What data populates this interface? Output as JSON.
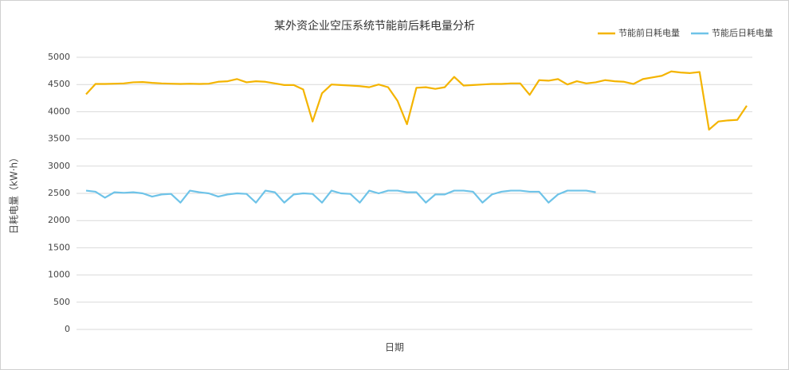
{
  "chart_data": {
    "type": "line",
    "title": "某外资企业空压系统节能前后耗电量分析",
    "x_label": "日期",
    "y_label": "日耗电量（kW·h）",
    "categories": [
      null,
      null,
      null,
      null,
      null,
      null,
      null,
      null,
      null,
      null,
      null,
      null,
      null,
      null,
      null,
      null,
      null,
      null,
      null,
      null,
      null,
      null,
      null,
      null,
      null,
      null,
      null,
      null,
      null,
      null,
      null,
      null,
      null,
      null,
      null,
      null,
      null,
      null,
      null,
      null,
      null,
      null,
      null,
      null,
      null,
      null,
      null,
      null,
      null,
      null,
      null,
      null,
      null,
      null,
      null,
      null,
      null,
      null,
      null,
      null,
      null,
      null,
      null,
      null,
      null,
      null,
      null,
      null,
      null,
      null,
      null
    ],
    "series": [
      {
        "name": "节能前日耗电量",
        "color": "#f4b400",
        "values": [
          4320,
          4510,
          4510,
          4515,
          4520,
          4540,
          4545,
          4530,
          4520,
          4515,
          4510,
          4515,
          4510,
          4515,
          4550,
          4560,
          4600,
          4540,
          4560,
          4550,
          4520,
          4490,
          4490,
          4410,
          3820,
          4340,
          4500,
          4490,
          4480,
          4470,
          4450,
          4500,
          4450,
          4200,
          3770,
          4440,
          4450,
          4420,
          4450,
          4640,
          4480,
          4490,
          4500,
          4510,
          4510,
          4520,
          4520,
          4310,
          4580,
          4570,
          4600,
          4500,
          4560,
          4520,
          4540,
          4580,
          4560,
          4550,
          4510,
          4600,
          4630,
          4660,
          4740,
          4720,
          4710,
          4730,
          3670,
          3820,
          3840,
          3850,
          4110
        ]
      },
      {
        "name": "节能后日耗电量",
        "color": "#6ec3e8",
        "values": [
          2550,
          2530,
          2420,
          2520,
          2510,
          2520,
          2500,
          2440,
          2480,
          2490,
          2330,
          2550,
          2520,
          2500,
          2440,
          2480,
          2500,
          2490,
          2330,
          2550,
          2520,
          2330,
          2480,
          2500,
          2490,
          2330,
          2550,
          2500,
          2490,
          2330,
          2550,
          2500,
          2550,
          2550,
          2520,
          2520,
          2330,
          2480,
          2480,
          2550,
          2550,
          2530,
          2330,
          2480,
          2530,
          2550,
          2550,
          2530,
          2530,
          2330,
          2480,
          2550,
          2550,
          2550,
          2520,
          null,
          null,
          null,
          null,
          null,
          null,
          null,
          null,
          null,
          null,
          null,
          null,
          null,
          null,
          null,
          null
        ]
      }
    ],
    "ylim": [
      0,
      5000
    ],
    "yticks": [
      0,
      500,
      1000,
      1500,
      2000,
      2500,
      3000,
      3500,
      4000,
      4500,
      5000
    ],
    "grid": true,
    "legend": "top-right"
  }
}
